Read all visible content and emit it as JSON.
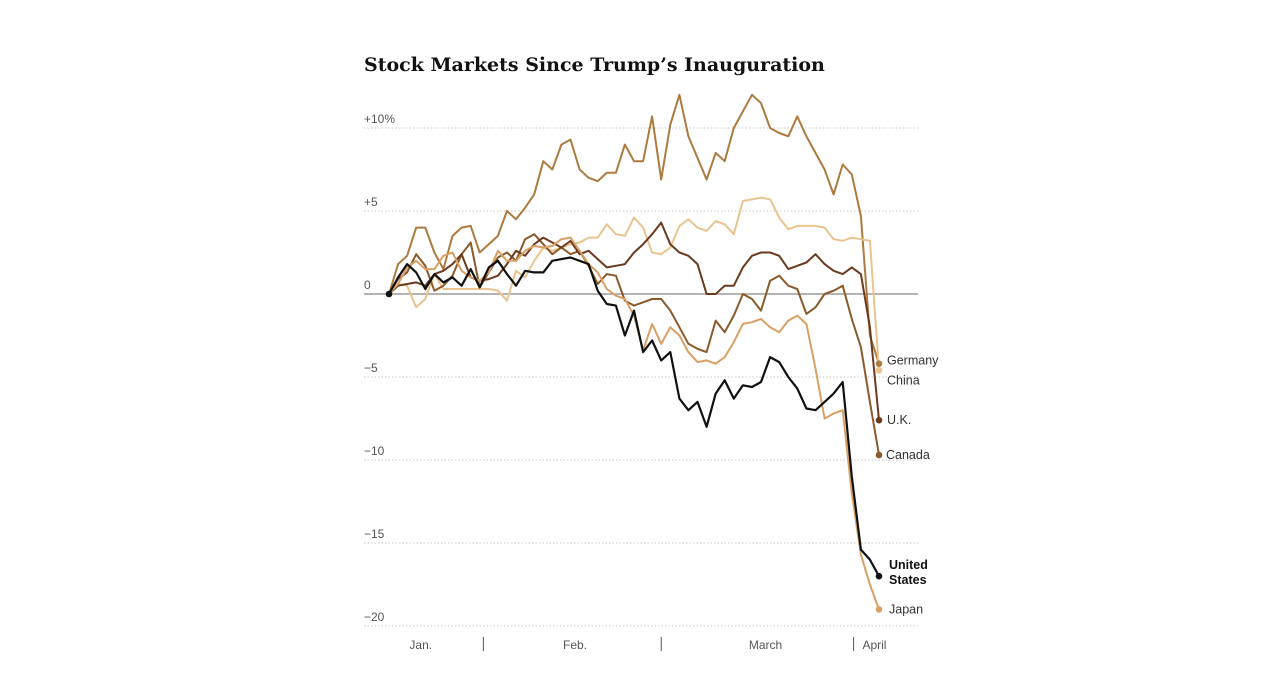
{
  "chart_data": {
    "type": "line",
    "title": "Stock Markets Since Trump’s Inauguration",
    "ylabel": "",
    "xlabel": "",
    "ylim": [
      -20.5,
      12.5
    ],
    "y_ticks": [
      {
        "value": 10,
        "label": "+10%"
      },
      {
        "value": 5,
        "label": "+5"
      },
      {
        "value": 0,
        "label": "0"
      },
      {
        "value": -5,
        "label": "−5"
      },
      {
        "value": -10,
        "label": "−10"
      },
      {
        "value": -15,
        "label": "−15"
      },
      {
        "value": -20,
        "label": "−20"
      }
    ],
    "x_range": [
      0,
      54
    ],
    "x_month_labels": [
      {
        "x": 3.5,
        "label": "Jan."
      },
      {
        "x": 20.5,
        "label": "Feb."
      },
      {
        "x": 41.5,
        "label": "March"
      },
      {
        "x": 53.5,
        "label": "April"
      }
    ],
    "x_month_separators": [
      10.4,
      30.0,
      51.2
    ],
    "grid": true,
    "legend": "labels at line ends",
    "series": [
      {
        "name": "Germany",
        "color": "#ad7a3f",
        "values": [
          0,
          1.8,
          2.3,
          4.0,
          4.0,
          2.5,
          1.5,
          3.5,
          4.0,
          4.1,
          2.5,
          3.0,
          3.5,
          5.0,
          4.5,
          5.2,
          6.0,
          8.0,
          7.5,
          9.0,
          9.3,
          7.5,
          7.0,
          6.8,
          7.3,
          7.3,
          9.0,
          8.0,
          8.0,
          10.7,
          6.9,
          10.2,
          12.0,
          9.5,
          8.2,
          6.9,
          8.5,
          8.0,
          10.0,
          11.0,
          12.0,
          11.5,
          10.0,
          9.7,
          9.5,
          10.7,
          9.5,
          8.5,
          7.5,
          6.0,
          7.8,
          7.2,
          4.7,
          -2.5,
          -4.2
        ]
      },
      {
        "name": "China",
        "color": "#eac48f",
        "values": [
          0,
          0.6,
          0.5,
          -0.8,
          -0.3,
          1.2,
          0.3,
          0.3,
          0.3,
          0.3,
          0.3,
          0.3,
          0.2,
          -0.4,
          1.4,
          1.0,
          2.0,
          2.8,
          2.6,
          2.8,
          3.0,
          3.1,
          3.4,
          3.4,
          4.2,
          3.6,
          3.5,
          4.6,
          4.0,
          2.5,
          2.4,
          2.8,
          4.1,
          4.5,
          4.0,
          3.8,
          4.4,
          4.2,
          3.6,
          5.6,
          5.7,
          5.8,
          5.7,
          4.6,
          3.9,
          4.1,
          4.1,
          4.1,
          4.0,
          3.3,
          3.2,
          3.4,
          3.3,
          3.2,
          -4.6
        ]
      },
      {
        "name": "U.K.",
        "color": "#6b3a1f",
        "values": [
          0,
          0.5,
          0.6,
          0.7,
          0.5,
          1.2,
          1.4,
          1.8,
          2.4,
          1.0,
          0.8,
          0.9,
          1.1,
          1.8,
          2.6,
          2.3,
          3.0,
          3.4,
          3.1,
          2.8,
          3.2,
          2.4,
          2.6,
          2.1,
          1.6,
          1.7,
          1.8,
          2.5,
          3.0,
          3.6,
          4.3,
          3.0,
          2.5,
          2.3,
          1.8,
          0.0,
          0.0,
          0.5,
          0.5,
          1.6,
          2.3,
          2.5,
          2.5,
          2.3,
          1.5,
          1.7,
          1.9,
          2.4,
          1.8,
          1.4,
          1.2,
          1.6,
          1.2,
          -2.0,
          -7.6
        ]
      },
      {
        "name": "Canada",
        "color": "#8b5a2b",
        "values": [
          0,
          0.9,
          1.3,
          2.4,
          1.7,
          0.2,
          0.5,
          1.1,
          2.4,
          3.1,
          0.4,
          1.3,
          2.2,
          2.5,
          2.0,
          3.3,
          3.6,
          3.0,
          2.4,
          2.8,
          2.4,
          2.6,
          1.7,
          0.6,
          1.2,
          1.1,
          -0.4,
          -0.7,
          -0.5,
          -0.3,
          -0.3,
          -1.0,
          -2.0,
          -3.0,
          -3.3,
          -3.5,
          -1.6,
          -2.3,
          -1.3,
          0.0,
          -0.3,
          -1.0,
          0.8,
          1.1,
          0.5,
          0.3,
          -1.2,
          -0.8,
          0.0,
          0.2,
          0.5,
          -1.5,
          -3.2,
          -6.5,
          -9.7
        ]
      },
      {
        "name": "United States",
        "color": "#111111",
        "values": [
          0,
          1.0,
          1.8,
          1.3,
          0.3,
          1.2,
          0.7,
          1.0,
          0.5,
          1.5,
          0.4,
          1.6,
          2.0,
          1.2,
          0.5,
          1.4,
          1.3,
          1.3,
          2.0,
          2.1,
          2.2,
          2.0,
          1.8,
          0.2,
          -0.6,
          -0.7,
          -2.5,
          -1.0,
          -3.5,
          -2.8,
          -4.0,
          -3.5,
          -6.3,
          -7.0,
          -6.5,
          -8.0,
          -6.0,
          -5.2,
          -6.3,
          -5.5,
          -5.6,
          -5.3,
          -3.8,
          -4.1,
          -5.0,
          -5.7,
          -6.9,
          -7.0,
          -6.5,
          -6.0,
          -5.3,
          -11.0,
          -15.4,
          -16.0,
          -17.0
        ]
      },
      {
        "name": "Japan",
        "color": "#d9a066",
        "values": [
          0,
          0.6,
          1.6,
          2.0,
          1.5,
          1.5,
          2.3,
          2.5,
          1.4,
          1.0,
          0.8,
          1.3,
          2.6,
          2.0,
          2.0,
          2.6,
          2.9,
          2.8,
          2.9,
          3.3,
          3.4,
          2.6,
          1.8,
          1.3,
          0.3,
          -0.1,
          -0.3,
          -1.3,
          -3.4,
          -1.8,
          -3.0,
          -2.0,
          -2.5,
          -3.5,
          -4.1,
          -4.0,
          -4.2,
          -3.8,
          -2.9,
          -1.8,
          -1.7,
          -1.5,
          -2.0,
          -2.3,
          -1.6,
          -1.3,
          -1.8,
          -4.5,
          -7.5,
          -7.2,
          -7.0,
          -12.0,
          -15.7,
          -17.5,
          -19.0
        ]
      }
    ],
    "end_labels": [
      {
        "series": "Germany",
        "text": "Germany"
      },
      {
        "series": "China",
        "text": "China"
      },
      {
        "series": "U.K.",
        "text": "U.K."
      },
      {
        "series": "Canada",
        "text": "Canada"
      },
      {
        "series": "United States",
        "text": "United States",
        "lines": [
          "United",
          "States"
        ]
      },
      {
        "series": "Japan",
        "text": "Japan"
      }
    ]
  }
}
